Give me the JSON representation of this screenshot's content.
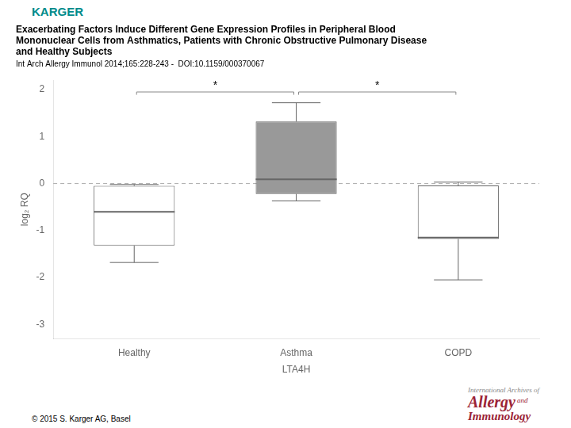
{
  "chart_data": {
    "type": "box",
    "title": [
      "Exacerbating Factors Induce Different Gene Expression Profiles in Peripheral Blood",
      "Mononuclear Cells from Asthmatics, Patients with Chronic Obstructive Pulmonary Disease",
      "and Healthy Subjects"
    ],
    "subtitle": "Int Arch Allergy Immunol 2014;165:228-243 -  DOI:10.1159/000370067",
    "publisher": {
      "text": "KARGER",
      "color": "#008B8B"
    },
    "copyright": "© 2015 S. Karger AG, Basel",
    "journal": [
      {
        "text": "International Archives of",
        "color": "#888888"
      },
      {
        "text": "Allergy",
        "color": "#9b2335"
      },
      {
        "text": "and",
        "color": "#9b2335"
      },
      {
        "text": "Immunology",
        "color": "#9b2335"
      }
    ],
    "xlabel": "LTA4H",
    "ylabel": "log₂ RQ",
    "categories": [
      "Healthy",
      "Asthma",
      "COPD"
    ],
    "boxes": [
      {
        "q1": -1.32,
        "median": -0.6,
        "q3": -0.05,
        "whisker_low": -1.68,
        "whisker_high": -0.02
      },
      {
        "q1": -0.22,
        "median": 0.09,
        "q3": 1.32,
        "whisker_low": -0.37,
        "whisker_high": 1.72
      },
      {
        "q1": -1.18,
        "median": -1.15,
        "q3": -0.04,
        "whisker_low": -2.05,
        "whisker_high": 0.03
      }
    ],
    "colors": [
      "#ffffff",
      "#999999",
      "#ffffff"
    ],
    "color": "#666666",
    "brackets": [
      {
        "from": "Healthy",
        "to": "Asthma",
        "y": 1.95,
        "label": "*",
        "color": "#888888"
      },
      {
        "from": "Asthma",
        "to": "COPD",
        "y": 1.95,
        "label": "*",
        "color": "#888888"
      }
    ],
    "reference_lines": [
      {
        "y": 0.0,
        "line_style": "dashed",
        "color": "#aaaaaa"
      }
    ],
    "ylim": [
      -3.3,
      2.2
    ],
    "yticks": [
      -3,
      -2,
      -1,
      0,
      1,
      2
    ],
    "grid": false
  }
}
